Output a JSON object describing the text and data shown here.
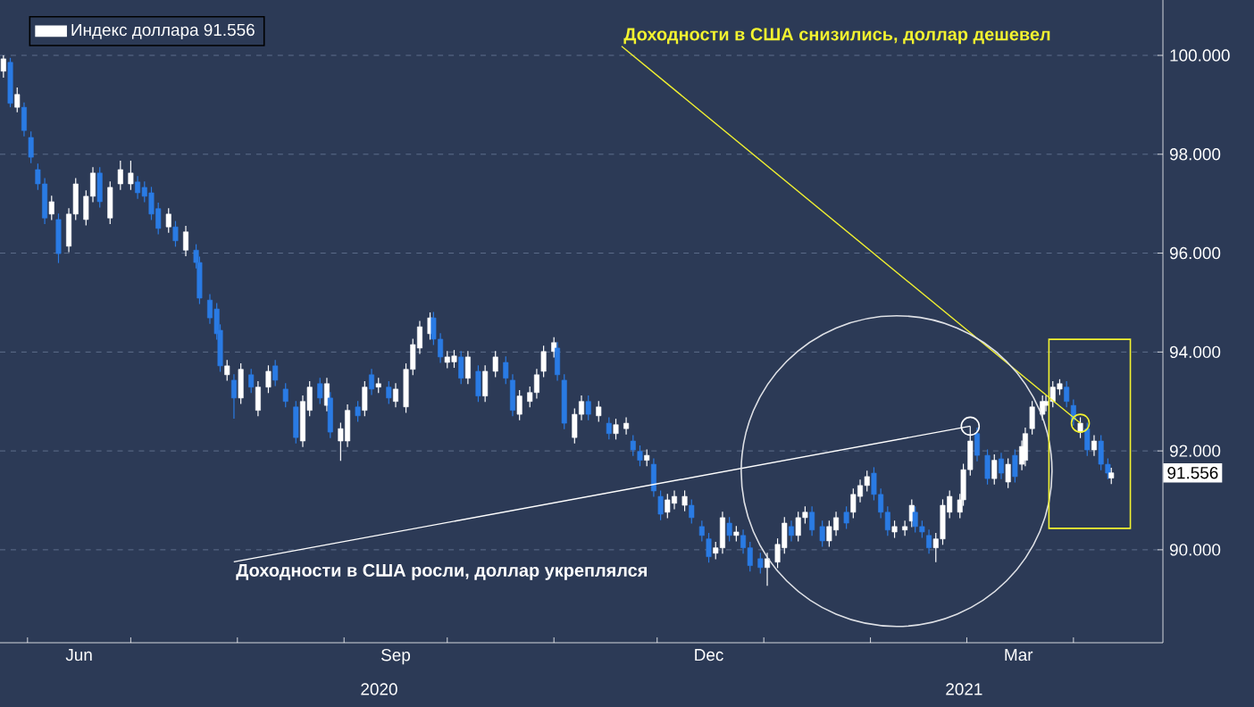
{
  "chart_data": {
    "type": "candlestick",
    "series": [
      {
        "name": "Индекс доллара  91.556",
        "color": "#ffffff",
        "colors": [
          "#ffffff",
          "#2a7be4",
          "#ffffff",
          "#2a7be4",
          "#2a7be4",
          "#2a7be4",
          "#2a7be4",
          "#ffffff",
          "#2a7be4",
          "#ffffff",
          "#ffffff",
          "#ffffff",
          "#ffffff",
          "#2a7be4",
          "#ffffff",
          "#ffffff",
          "#ffffff",
          "#2a7be4",
          "#2a7be4",
          "#2a7be4",
          "#2a7be4",
          "#ffffff",
          "#2a7be4",
          "#ffffff",
          "#2a7be4",
          "#2a7be4",
          "#2a7be4",
          "#2a7be4",
          "#2a7be4",
          "#ffffff",
          "#2a7be4",
          "#ffffff",
          "#2a7be4",
          "#ffffff",
          "#ffffff",
          "#2a7be4",
          "#2a7be4",
          "#2a7be4",
          "#ffffff",
          "#ffffff",
          "#2a7be4",
          "#ffffff",
          "#2a7be4",
          "#ffffff",
          "#ffffff",
          "#2a7be4",
          "#ffffff",
          "#2a7be4",
          "#ffffff",
          "#2a7be4",
          "#ffffff",
          "#ffffff",
          "#ffffff",
          "#ffffff",
          "#ffffff",
          "#2a7be4",
          "#2a7be4",
          "#ffffff",
          "#ffffff",
          "#2a7be4",
          "#ffffff",
          "#2a7be4",
          "#ffffff",
          "#ffffff",
          "#2a7be4",
          "#2a7be4",
          "#ffffff",
          "#ffffff",
          "#ffffff",
          "#ffffff",
          "#ffffff",
          "#2a7be4",
          "#2a7be4",
          "#ffffff",
          "#ffffff",
          "#2a7be4",
          "#ffffff",
          "#2a7be4",
          "#ffffff",
          "#ffffff",
          "#2a7be4",
          "#2a7be4",
          "#ffffff",
          "#2a7be4",
          "#2a7be4",
          "#ffffff",
          "#ffffff",
          "#ffffff",
          "#2a7be4",
          "#2a7be4",
          "#2a7be4",
          "#ffffff",
          "#ffffff",
          "#2a7be4",
          "#ffffff",
          "#2a7be4",
          "#2a7be4",
          "#2a7be4",
          "#ffffff",
          "#ffffff",
          "#ffffff",
          "#2a7be4",
          "#ffffff",
          "#ffffff",
          "#2a7be4",
          "#2a7be4",
          "#ffffff",
          "#ffffff",
          "#2a7be4",
          "#ffffff",
          "#ffffff",
          "#ffffff",
          "#2a7be4",
          "#2a7be4",
          "#2a7be4",
          "#ffffff",
          "#ffffff",
          "#ffffff",
          "#2a7be4",
          "#2a7be4",
          "#2a7be4",
          "#ffffff",
          "#ffffff",
          "#ffffff",
          "#ffffff",
          "#ffffff",
          "#ffffff",
          "#2a7be4",
          "#2a7be4",
          "#ffffff",
          "#2a7be4",
          "#ffffff",
          "#2a7be4",
          "#ffffff",
          "#ffffff",
          "#ffffff",
          "#ffffff",
          "#ffffff",
          "#ffffff",
          "#ffffff",
          "#2a7be4",
          "#2a7be4",
          "#ffffff",
          "#2a7be4",
          "#ffffff",
          "#2a7be4",
          "#2a7be4",
          "#ffffff"
        ],
        "x": [
          "2020-05-25",
          "2020-05-27",
          "2020-05-29",
          "2020-05-31",
          "2020-06-02",
          "2020-06-04",
          "2020-06-06",
          "2020-06-08",
          "2020-06-10",
          "2020-06-13",
          "2020-06-15",
          "2020-06-18",
          "2020-06-20",
          "2020-06-22",
          "2020-06-25",
          "2020-06-28",
          "2020-07-01",
          "2020-07-03",
          "2020-07-05",
          "2020-07-07",
          "2020-07-09",
          "2020-07-12",
          "2020-07-14",
          "2020-07-17",
          "2020-07-20",
          "2020-07-21",
          "2020-07-24",
          "2020-07-26",
          "2020-07-27",
          "2020-07-29",
          "2020-07-31",
          "2020-08-02",
          "2020-08-05",
          "2020-08-07",
          "2020-08-10",
          "2020-08-12",
          "2020-08-15",
          "2020-08-18",
          "2020-08-20",
          "2020-08-22",
          "2020-08-25",
          "2020-08-27",
          "2020-08-28",
          "2020-08-31",
          "2020-09-02",
          "2020-09-05",
          "2020-09-07",
          "2020-09-09",
          "2020-09-11",
          "2020-09-14",
          "2020-09-16",
          "2020-09-19",
          "2020-09-21",
          "2020-09-23",
          "2020-09-26",
          "2020-09-27",
          "2020-09-29",
          "2020-10-01",
          "2020-10-03",
          "2020-10-05",
          "2020-10-07",
          "2020-10-10",
          "2020-10-12",
          "2020-10-15",
          "2020-10-18",
          "2020-10-20",
          "2020-10-22",
          "2020-10-25",
          "2020-10-27",
          "2020-10-29",
          "2020-11-01",
          "2020-11-02",
          "2020-11-04",
          "2020-11-07",
          "2020-11-09",
          "2020-11-11",
          "2020-11-14",
          "2020-11-17",
          "2020-11-19",
          "2020-11-22",
          "2020-11-24",
          "2020-11-26",
          "2020-11-28",
          "2020-11-30",
          "2020-12-02",
          "2020-12-04",
          "2020-12-06",
          "2020-12-09",
          "2020-12-11",
          "2020-12-14",
          "2020-12-16",
          "2020-12-18",
          "2020-12-20",
          "2020-12-22",
          "2020-12-24",
          "2020-12-26",
          "2020-12-28",
          "2020-12-31",
          "2021-01-02",
          "2021-01-05",
          "2021-01-07",
          "2021-01-09",
          "2021-01-11",
          "2021-01-13",
          "2021-01-15",
          "2021-01-18",
          "2021-01-20",
          "2021-01-22",
          "2021-01-25",
          "2021-01-27",
          "2021-01-29",
          "2021-01-31",
          "2021-02-02",
          "2021-02-04",
          "2021-02-06",
          "2021-02-08",
          "2021-02-11",
          "2021-02-13",
          "2021-02-14",
          "2021-02-16",
          "2021-02-18",
          "2021-02-20",
          "2021-02-22",
          "2021-02-24",
          "2021-02-27",
          "2021-02-28",
          "2021-03-02",
          "2021-03-04",
          "2021-03-07",
          "2021-03-09",
          "2021-03-11",
          "2021-03-13",
          "2021-03-15",
          "2021-03-17",
          "2021-03-18",
          "2021-03-20",
          "2021-03-23",
          "2021-03-24",
          "2021-03-26",
          "2021-03-28",
          "2021-03-30",
          "2021-04-01",
          "2021-04-03",
          "2021-04-05",
          "2021-04-07",
          "2021-04-09",
          "2021-04-11",
          "2021-04-12"
        ],
        "ohlc": [
          [
            99.68,
            100.0,
            99.55,
            99.93
          ],
          [
            99.86,
            99.95,
            98.95,
            99.03
          ],
          [
            98.95,
            99.35,
            98.85,
            99.21
          ],
          [
            98.95,
            99.05,
            98.36,
            98.48
          ],
          [
            98.34,
            98.46,
            97.82,
            97.94
          ],
          [
            97.69,
            97.81,
            97.28,
            97.4
          ],
          [
            97.4,
            97.52,
            96.59,
            96.71
          ],
          [
            96.79,
            97.16,
            96.67,
            97.04
          ],
          [
            96.68,
            96.8,
            95.8,
            95.99
          ],
          [
            96.14,
            96.91,
            96.02,
            96.79
          ],
          [
            96.79,
            97.52,
            96.67,
            97.4
          ],
          [
            96.68,
            97.27,
            96.56,
            97.15
          ],
          [
            97.15,
            97.74,
            97.03,
            97.62
          ],
          [
            97.62,
            97.74,
            96.92,
            97.04
          ],
          [
            96.71,
            97.45,
            96.59,
            97.33
          ],
          [
            97.4,
            97.87,
            97.28,
            97.69
          ],
          [
            97.4,
            97.87,
            97.28,
            97.62
          ],
          [
            97.44,
            97.56,
            97.1,
            97.22
          ],
          [
            97.33,
            97.45,
            97.03,
            97.15
          ],
          [
            97.22,
            97.34,
            96.67,
            96.79
          ],
          [
            96.9,
            97.02,
            96.38,
            96.5
          ],
          [
            96.53,
            96.91,
            96.41,
            96.79
          ],
          [
            96.53,
            96.65,
            96.13,
            96.25
          ],
          [
            96.06,
            96.55,
            95.94,
            96.43
          ],
          [
            96.06,
            96.18,
            95.69,
            95.81
          ],
          [
            95.81,
            95.93,
            94.97,
            95.09
          ],
          [
            95.05,
            95.17,
            94.57,
            94.69
          ],
          [
            94.87,
            94.99,
            94.25,
            94.37
          ],
          [
            94.44,
            94.56,
            93.6,
            93.72
          ],
          [
            93.54,
            93.84,
            93.42,
            93.72
          ],
          [
            93.43,
            93.55,
            92.65,
            93.07
          ],
          [
            93.07,
            93.77,
            92.95,
            93.65
          ],
          [
            93.54,
            93.66,
            93.17,
            93.29
          ],
          [
            92.82,
            93.41,
            92.7,
            93.29
          ],
          [
            93.29,
            93.73,
            93.17,
            93.61
          ],
          [
            93.72,
            93.84,
            93.31,
            93.43
          ],
          [
            93.25,
            93.37,
            92.88,
            93.0
          ],
          [
            92.89,
            93.01,
            92.15,
            92.27
          ],
          [
            92.2,
            93.12,
            92.08,
            93.0
          ],
          [
            92.82,
            93.41,
            92.7,
            93.29
          ],
          [
            93.36,
            93.48,
            92.95,
            93.07
          ],
          [
            92.92,
            93.48,
            92.8,
            93.36
          ],
          [
            93.07,
            93.19,
            92.26,
            92.38
          ],
          [
            92.2,
            92.57,
            91.8,
            92.45
          ],
          [
            92.2,
            92.94,
            92.08,
            92.82
          ],
          [
            92.89,
            93.01,
            92.59,
            92.71
          ],
          [
            92.82,
            93.41,
            92.7,
            93.29
          ],
          [
            93.54,
            93.66,
            93.13,
            93.25
          ],
          [
            93.29,
            93.48,
            93.17,
            93.36
          ],
          [
            93.29,
            93.41,
            92.95,
            93.07
          ],
          [
            93.0,
            93.37,
            92.88,
            93.25
          ],
          [
            92.89,
            93.77,
            92.77,
            93.65
          ],
          [
            93.65,
            94.27,
            93.53,
            94.15
          ],
          [
            94.08,
            94.63,
            93.96,
            94.51
          ],
          [
            94.37,
            94.8,
            94.25,
            94.69
          ],
          [
            94.69,
            94.81,
            94.14,
            94.26
          ],
          [
            94.26,
            94.38,
            93.78,
            93.9
          ],
          [
            93.79,
            94.02,
            93.67,
            93.9
          ],
          [
            93.8,
            94.04,
            93.68,
            93.92
          ],
          [
            93.9,
            94.02,
            93.35,
            93.47
          ],
          [
            93.47,
            94.02,
            93.35,
            93.9
          ],
          [
            93.61,
            93.73,
            92.99,
            93.11
          ],
          [
            93.11,
            93.73,
            92.99,
            93.61
          ],
          [
            93.61,
            94.02,
            93.49,
            93.9
          ],
          [
            93.79,
            93.91,
            93.35,
            93.47
          ],
          [
            93.43,
            93.55,
            92.7,
            92.82
          ],
          [
            92.74,
            93.23,
            92.62,
            93.11
          ],
          [
            93.0,
            93.3,
            92.88,
            93.18
          ],
          [
            93.18,
            93.66,
            93.06,
            93.54
          ],
          [
            93.61,
            94.13,
            93.49,
            94.01
          ],
          [
            94.01,
            94.3,
            93.89,
            94.19
          ],
          [
            94.08,
            94.2,
            93.42,
            93.54
          ],
          [
            93.43,
            93.55,
            92.44,
            92.56
          ],
          [
            92.27,
            92.86,
            92.15,
            92.74
          ],
          [
            92.74,
            93.12,
            92.62,
            93.0
          ],
          [
            93.0,
            93.12,
            92.62,
            92.74
          ],
          [
            92.71,
            93.01,
            92.59,
            92.89
          ],
          [
            92.56,
            92.68,
            92.23,
            92.35
          ],
          [
            92.35,
            92.65,
            92.23,
            92.53
          ],
          [
            92.45,
            92.68,
            92.33,
            92.56
          ],
          [
            92.2,
            92.32,
            91.9,
            92.02
          ],
          [
            91.99,
            92.11,
            91.69,
            91.81
          ],
          [
            91.81,
            92.03,
            91.69,
            91.91
          ],
          [
            91.73,
            91.85,
            91.07,
            91.19
          ],
          [
            91.08,
            91.2,
            90.6,
            90.72
          ],
          [
            90.76,
            91.13,
            90.64,
            91.01
          ],
          [
            90.94,
            91.2,
            90.82,
            91.08
          ],
          [
            90.9,
            91.2,
            90.78,
            91.08
          ],
          [
            90.9,
            91.02,
            90.53,
            90.65
          ],
          [
            90.47,
            90.59,
            90.17,
            90.29
          ],
          [
            90.22,
            90.34,
            89.74,
            89.86
          ],
          [
            89.93,
            90.16,
            89.81,
            90.04
          ],
          [
            90.04,
            90.77,
            89.92,
            90.65
          ],
          [
            90.54,
            90.66,
            90.17,
            90.29
          ],
          [
            90.29,
            90.48,
            90.17,
            90.36
          ],
          [
            90.29,
            90.41,
            89.92,
            90.04
          ],
          [
            90.04,
            90.16,
            89.56,
            89.68
          ],
          [
            89.82,
            89.94,
            89.52,
            89.64
          ],
          [
            89.64,
            89.94,
            89.27,
            89.82
          ],
          [
            89.75,
            90.23,
            89.63,
            90.11
          ],
          [
            90.04,
            90.66,
            89.92,
            90.54
          ],
          [
            90.47,
            90.59,
            90.17,
            90.29
          ],
          [
            90.29,
            90.77,
            90.17,
            90.65
          ],
          [
            90.65,
            90.88,
            90.53,
            90.76
          ],
          [
            90.76,
            90.88,
            90.28,
            90.4
          ],
          [
            90.47,
            90.59,
            90.06,
            90.18
          ],
          [
            90.18,
            90.59,
            90.06,
            90.47
          ],
          [
            90.4,
            90.77,
            90.28,
            90.65
          ],
          [
            90.76,
            90.88,
            90.42,
            90.54
          ],
          [
            90.76,
            91.24,
            90.64,
            91.12
          ],
          [
            91.08,
            91.42,
            90.96,
            91.3
          ],
          [
            91.3,
            91.6,
            91.18,
            91.48
          ],
          [
            91.55,
            91.67,
            91.0,
            91.12
          ],
          [
            91.12,
            91.24,
            90.64,
            90.76
          ],
          [
            90.76,
            90.88,
            90.28,
            90.4
          ],
          [
            90.36,
            90.59,
            90.24,
            90.47
          ],
          [
            90.4,
            90.59,
            90.28,
            90.47
          ],
          [
            90.58,
            91.02,
            90.46,
            90.9
          ],
          [
            90.76,
            90.88,
            90.35,
            90.47
          ],
          [
            90.47,
            90.59,
            90.24,
            90.36
          ],
          [
            90.29,
            90.41,
            89.92,
            90.04
          ],
          [
            90.04,
            90.34,
            89.75,
            90.22
          ],
          [
            90.22,
            91.02,
            90.1,
            90.9
          ],
          [
            90.76,
            91.2,
            90.64,
            91.08
          ],
          [
            90.76,
            91.13,
            90.64,
            91.01
          ],
          [
            91.01,
            91.74,
            90.89,
            91.62
          ],
          [
            91.62,
            92.5,
            91.5,
            92.2
          ],
          [
            92.35,
            92.47,
            91.79,
            91.91
          ],
          [
            91.91,
            92.03,
            91.32,
            91.44
          ],
          [
            91.44,
            91.93,
            91.32,
            91.81
          ],
          [
            91.84,
            91.96,
            91.43,
            91.55
          ],
          [
            91.37,
            91.85,
            91.25,
            91.73
          ],
          [
            91.91,
            92.03,
            91.36,
            91.48
          ],
          [
            91.73,
            92.21,
            91.61,
            92.09
          ],
          [
            91.81,
            92.47,
            91.69,
            92.35
          ],
          [
            92.45,
            93.01,
            92.33,
            92.89
          ],
          [
            92.74,
            93.12,
            92.62,
            93.0
          ],
          [
            92.92,
            93.12,
            92.8,
            93.0
          ],
          [
            93.0,
            93.41,
            92.88,
            93.29
          ],
          [
            93.25,
            93.45,
            93.13,
            93.36
          ],
          [
            93.29,
            93.41,
            92.88,
            93.0
          ],
          [
            92.92,
            93.04,
            92.51,
            92.63
          ],
          [
            92.38,
            92.68,
            92.26,
            92.56
          ],
          [
            92.45,
            92.57,
            91.9,
            92.02
          ],
          [
            92.02,
            92.32,
            91.9,
            92.2
          ],
          [
            92.2,
            92.32,
            91.61,
            91.73
          ],
          [
            91.73,
            91.85,
            91.43,
            91.55
          ],
          [
            91.45,
            91.66,
            91.33,
            91.556
          ]
        ]
      }
    ],
    "xlim": [
      "2020-05-24",
      "2021-04-27"
    ],
    "xticks": [
      {
        "value": "2020-06-01",
        "label": null
      },
      {
        "value": "2020-07-01",
        "label": null
      },
      {
        "value": "2020-08-01",
        "label": null
      },
      {
        "value": "2020-09-01",
        "label": null
      },
      {
        "value": "2020-10-01",
        "label": null
      },
      {
        "value": "2020-11-01",
        "label": null
      },
      {
        "value": "2020-12-01",
        "label": null
      },
      {
        "value": "2021-01-01",
        "label": null
      },
      {
        "value": "2021-02-01",
        "label": null
      },
      {
        "value": "2021-03-01",
        "label": null
      },
      {
        "value": "2021-04-01",
        "label": null
      },
      {
        "value": "2020-06-16",
        "label": "Jun"
      },
      {
        "value": "2020-09-16",
        "label": "Sep"
      },
      {
        "value": "2020-12-16",
        "label": "Dec"
      },
      {
        "value": "2021-03-16",
        "label": "Mar"
      }
    ],
    "ylim": [
      88.12,
      101.12
    ],
    "yticks": [
      {
        "value": 90,
        "label": "90.000"
      },
      {
        "value": 92,
        "label": "92.000"
      },
      {
        "value": 94,
        "label": "94.000"
      },
      {
        "value": 96,
        "label": "96.000"
      },
      {
        "value": 98,
        "label": "98.000"
      },
      {
        "value": 100,
        "label": "100.000"
      }
    ],
    "grid": "y",
    "legend": "top left",
    "annotations": [
      {
        "text": "Доходности в США снизились, доллар дешевел",
        "x": "2021-04-03",
        "y": 92.56
      },
      {
        "text": "Доходности в США росли, доллар укреплялся",
        "x": "2021-03-02",
        "y": 92.5
      },
      "91.556",
      "2020",
      "2021"
    ]
  }
}
